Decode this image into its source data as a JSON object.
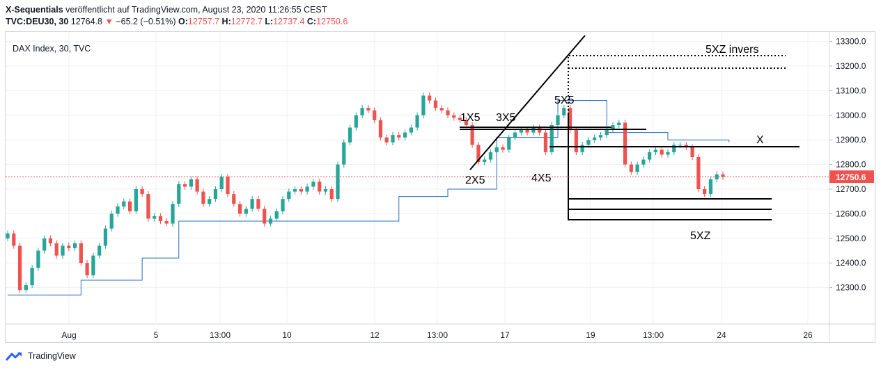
{
  "header": {
    "publisher": "X-Sequentials",
    "published_text": "veröffentlicht auf TradingView.com, August 23, 2020 11:26:55 CEST",
    "symbol": "TVC:DEU30, 30",
    "last": "12764.8",
    "change": "−65.2 (−0.51%)",
    "o_label": "O:",
    "o_value": "12757.7",
    "h_label": "H:",
    "h_value": "12772.7",
    "l_label": "L:",
    "l_value": "12737.4",
    "c_label": "C:",
    "c_value": "12750.6"
  },
  "footer": {
    "brand": "TradingView"
  },
  "colors": {
    "up": "#26a69a",
    "down": "#ef5350",
    "step": "#2a6fbd",
    "price_tag": "#ef5350"
  },
  "chart_data": {
    "type": "candlestick",
    "title": "DAX Index, 30, TVC",
    "ylim": [
      12200,
      13330
    ],
    "y_ticks": [
      "13300.0",
      "13200.0",
      "13100.0",
      "13000.0",
      "12900.0",
      "12800.0",
      "12700.0",
      "12600.0",
      "12500.0",
      "12400.0",
      "12300.0"
    ],
    "x_ticks": [
      "Aug",
      "5",
      "13:00",
      "10",
      "12",
      "13:00",
      "17",
      "19",
      "13:00",
      "24",
      "26"
    ],
    "current_price": "12750.6",
    "annotations": [
      "1X5",
      "2X5",
      "3X5",
      "4X5",
      "5X5",
      "X",
      "5XZ",
      "5XZ invers"
    ],
    "closes": [
      12520,
      12470,
      12290,
      12310,
      12380,
      12450,
      12500,
      12480,
      12430,
      12470,
      12460,
      12480,
      12400,
      12350,
      12430,
      12470,
      12540,
      12600,
      12630,
      12650,
      12610,
      12700,
      12680,
      12580,
      12590,
      12570,
      12560,
      12640,
      12720,
      12710,
      12740,
      12690,
      12640,
      12660,
      12700,
      12750,
      12680,
      12640,
      12600,
      12620,
      12660,
      12620,
      12560,
      12580,
      12610,
      12660,
      12690,
      12700,
      12690,
      12710,
      12730,
      12690,
      12700,
      12660,
      12800,
      12890,
      12950,
      13000,
      13030,
      13020,
      12980,
      12910,
      12890,
      12920,
      12910,
      12930,
      12950,
      13000,
      13080,
      13060,
      13030,
      13020,
      13000,
      12990,
      12980,
      12960,
      12880,
      12810,
      12820,
      12850,
      12870,
      12860,
      12910,
      12930,
      12940,
      12930,
      12950,
      12930,
      12850,
      12960,
      13000,
      13030,
      12940,
      12850,
      12880,
      12900,
      12910,
      12920,
      12940,
      12960,
      12970,
      12800,
      12770,
      12800,
      12820,
      12850,
      12860,
      12840,
      12850,
      12880,
      12880,
      12870,
      12830,
      12700,
      12680,
      12740,
      12760,
      12750
    ]
  }
}
